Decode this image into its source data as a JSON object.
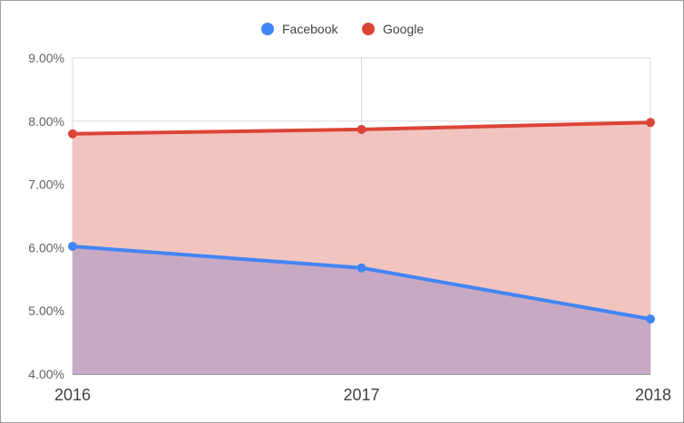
{
  "chart_data": {
    "type": "area",
    "categories": [
      "2016",
      "2017",
      "2018"
    ],
    "series": [
      {
        "name": "Facebook",
        "values": [
          6.02,
          5.68,
          4.87
        ],
        "color": "#4285f4",
        "fill": "#c8a9c3"
      },
      {
        "name": "Google",
        "values": [
          7.8,
          7.87,
          7.98
        ],
        "color": "#db4437",
        "fill": "#f2c4c0"
      }
    ],
    "y_ticks": [
      "4.00%",
      "5.00%",
      "6.00%",
      "7.00%",
      "8.00%",
      "9.00%"
    ],
    "ylim": [
      4.0,
      9.0
    ],
    "y_unit": "%",
    "grid": true,
    "legend_position": "top-center",
    "title": "",
    "xlabel": "",
    "ylabel": ""
  }
}
